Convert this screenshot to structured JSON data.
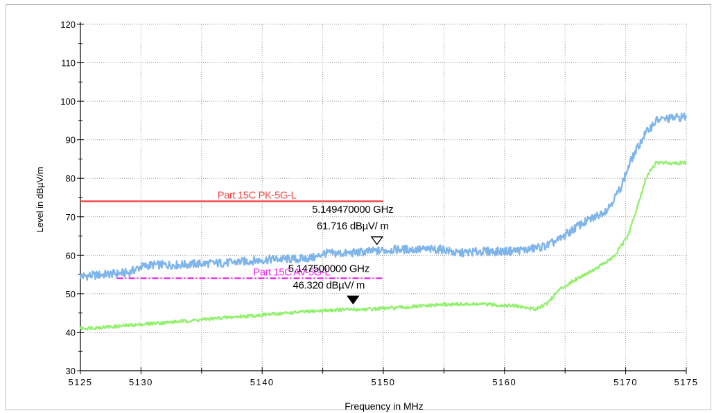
{
  "chart_data": {
    "type": "line",
    "xlabel": "Frequency in MHz",
    "ylabel": "Level in dBµV/m",
    "xlim": [
      5125,
      5175
    ],
    "ylim": [
      30,
      120
    ],
    "xticks": [
      5125,
      5130,
      5140,
      5150,
      5160,
      5170,
      5175
    ],
    "xminor": [
      5135,
      5145,
      5155,
      5165
    ],
    "yticks": [
      30,
      40,
      50,
      60,
      70,
      80,
      90,
      100,
      110,
      120
    ],
    "grid": true,
    "series": [
      {
        "color": "#7fb5ea",
        "x": [
          5125,
          5127,
          5129,
          5130,
          5131,
          5133,
          5135,
          5137,
          5139,
          5141,
          5143,
          5144.5,
          5145,
          5147,
          5149,
          5151,
          5153,
          5155,
          5156,
          5158,
          5160,
          5162,
          5163.5,
          5164.5,
          5166,
          5167.5,
          5168.5,
          5169.5,
          5170.5,
          5171.5,
          5172.5,
          5173.5,
          5175
        ],
        "y": [
          54.5,
          55,
          55.5,
          57,
          57.5,
          57.5,
          57.8,
          58,
          58.5,
          59,
          59,
          59.5,
          60.5,
          60.5,
          61,
          61.5,
          61.5,
          61.5,
          60.5,
          61,
          61,
          61.5,
          62.5,
          64,
          67.5,
          70,
          72,
          77,
          85,
          91,
          95,
          95.5,
          96
        ]
      },
      {
        "color": "#8ff06a",
        "x": [
          5125,
          5128,
          5131,
          5134,
          5137,
          5140,
          5143,
          5146,
          5149,
          5152,
          5155,
          5158,
          5161,
          5162.5,
          5163.5,
          5164.5,
          5166,
          5167.5,
          5169,
          5170.2,
          5171,
          5171.8,
          5172.5,
          5175
        ],
        "y": [
          41,
          41.5,
          42.3,
          43,
          43.8,
          44.5,
          45.2,
          45.8,
          46,
          46.5,
          47.2,
          47.3,
          46.8,
          46,
          47.5,
          51,
          54,
          56.5,
          59.5,
          65,
          73,
          81,
          84,
          84
        ]
      }
    ],
    "limit_lines": [
      {
        "label": "Part 15C PK-5G-L",
        "x": [
          5125,
          5150
        ],
        "y": 74,
        "color": "#f04848"
      },
      {
        "label": "Part 15C AV-5G-L",
        "x": [
          5128,
          5150
        ],
        "y": 54,
        "color": "#f028f0",
        "dashed": true
      }
    ],
    "markers": [
      {
        "x": 5149.47,
        "y": 61.716,
        "filled": false,
        "freq_text": "5.149470000 GHz",
        "level_text": "61.716  dBµV/ m"
      },
      {
        "x": 5147.5,
        "y": 46.32,
        "filled": true,
        "freq_text": "5.147500000 GHz",
        "level_text": "46.320  dBµV/ m"
      }
    ]
  }
}
